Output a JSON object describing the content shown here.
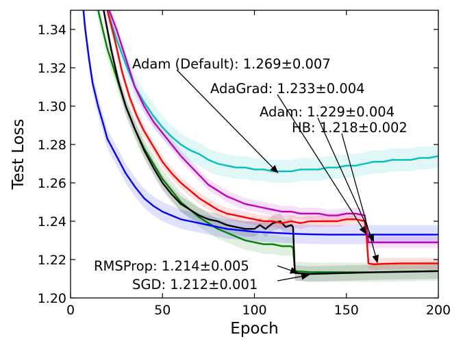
{
  "chart_data": {
    "type": "line",
    "xlabel": "Epoch",
    "ylabel": "Test Loss",
    "xlim": [
      0,
      200
    ],
    "ylim": [
      1.2,
      1.35
    ],
    "xticks": [
      0,
      50,
      100,
      150,
      200
    ],
    "yticks": [
      1.2,
      1.22,
      1.24,
      1.26,
      1.28,
      1.3,
      1.32,
      1.34
    ],
    "xtick_labels": [
      "0",
      "50",
      "100",
      "150",
      "200"
    ],
    "ytick_labels": [
      "1.20",
      "1.22",
      "1.24",
      "1.26",
      "1.28",
      "1.30",
      "1.32",
      "1.34"
    ],
    "grid": false,
    "legend": "none",
    "series": [
      {
        "key": "sgd",
        "color": "#007f00",
        "band": 0.005,
        "points": [
          [
            15,
            1.35
          ],
          [
            20,
            1.33
          ],
          [
            25,
            1.315
          ],
          [
            30,
            1.3
          ],
          [
            35,
            1.288
          ],
          [
            40,
            1.278
          ],
          [
            45,
            1.27
          ],
          [
            50,
            1.262
          ],
          [
            55,
            1.256
          ],
          [
            60,
            1.25
          ],
          [
            65,
            1.246
          ],
          [
            70,
            1.242
          ],
          [
            75,
            1.239
          ],
          [
            80,
            1.236
          ],
          [
            85,
            1.234
          ],
          [
            90,
            1.232
          ],
          [
            95,
            1.23
          ],
          [
            100,
            1.229
          ],
          [
            105,
            1.228
          ],
          [
            110,
            1.228
          ],
          [
            115,
            1.227
          ],
          [
            120,
            1.227
          ],
          [
            121,
            1.226
          ],
          [
            122,
            1.214
          ],
          [
            130,
            1.2135
          ],
          [
            150,
            1.2134
          ],
          [
            170,
            1.2134
          ],
          [
            200,
            1.214
          ]
        ]
      },
      {
        "key": "rmsprop",
        "color": "#000000",
        "band": 0.004,
        "points": [
          [
            18,
            1.35
          ],
          [
            22,
            1.33
          ],
          [
            26,
            1.313
          ],
          [
            30,
            1.3
          ],
          [
            35,
            1.288
          ],
          [
            40,
            1.277
          ],
          [
            45,
            1.268
          ],
          [
            50,
            1.26
          ],
          [
            55,
            1.254
          ],
          [
            60,
            1.249
          ],
          [
            65,
            1.246
          ],
          [
            70,
            1.243
          ],
          [
            75,
            1.241
          ],
          [
            80,
            1.24
          ],
          [
            85,
            1.238
          ],
          [
            90,
            1.237
          ],
          [
            95,
            1.236
          ],
          [
            100,
            1.236
          ],
          [
            103,
            1.238
          ],
          [
            106,
            1.236
          ],
          [
            110,
            1.239
          ],
          [
            114,
            1.24
          ],
          [
            117,
            1.237
          ],
          [
            120,
            1.238
          ],
          [
            121,
            1.237
          ],
          [
            122,
            1.213
          ],
          [
            130,
            1.2125
          ],
          [
            150,
            1.213
          ],
          [
            170,
            1.2135
          ],
          [
            200,
            1.214
          ]
        ]
      },
      {
        "key": "adam_default",
        "color": "#00bfbf",
        "band": 0.006,
        "points": [
          [
            20,
            1.35
          ],
          [
            25,
            1.335
          ],
          [
            30,
            1.322
          ],
          [
            35,
            1.31
          ],
          [
            40,
            1.302
          ],
          [
            45,
            1.295
          ],
          [
            50,
            1.289
          ],
          [
            55,
            1.284
          ],
          [
            60,
            1.28
          ],
          [
            65,
            1.277
          ],
          [
            70,
            1.275
          ],
          [
            75,
            1.272
          ],
          [
            80,
            1.27
          ],
          [
            85,
            1.269
          ],
          [
            90,
            1.268
          ],
          [
            95,
            1.268
          ],
          [
            100,
            1.267
          ],
          [
            105,
            1.267
          ],
          [
            110,
            1.266
          ],
          [
            115,
            1.266
          ],
          [
            120,
            1.266
          ],
          [
            125,
            1.267
          ],
          [
            130,
            1.267
          ],
          [
            135,
            1.267
          ],
          [
            140,
            1.268
          ],
          [
            145,
            1.268
          ],
          [
            150,
            1.269
          ],
          [
            155,
            1.269
          ],
          [
            160,
            1.27
          ],
          [
            165,
            1.271
          ],
          [
            170,
            1.271
          ],
          [
            175,
            1.272
          ],
          [
            180,
            1.272
          ],
          [
            185,
            1.272
          ],
          [
            190,
            1.273
          ],
          [
            195,
            1.273
          ],
          [
            200,
            1.274
          ]
        ]
      },
      {
        "key": "adagrad",
        "color": "#0000ff",
        "band": 0.005,
        "points": [
          [
            7,
            1.35
          ],
          [
            8,
            1.34
          ],
          [
            10,
            1.325
          ],
          [
            12,
            1.312
          ],
          [
            15,
            1.3
          ],
          [
            18,
            1.29
          ],
          [
            20,
            1.283
          ],
          [
            25,
            1.274
          ],
          [
            30,
            1.265
          ],
          [
            35,
            1.258
          ],
          [
            40,
            1.252
          ],
          [
            45,
            1.248
          ],
          [
            50,
            1.245
          ],
          [
            55,
            1.243
          ],
          [
            60,
            1.241
          ],
          [
            65,
            1.24
          ],
          [
            70,
            1.239
          ],
          [
            75,
            1.238
          ],
          [
            80,
            1.237
          ],
          [
            85,
            1.236
          ],
          [
            90,
            1.2355
          ],
          [
            95,
            1.235
          ],
          [
            100,
            1.2345
          ],
          [
            110,
            1.234
          ],
          [
            120,
            1.2335
          ],
          [
            130,
            1.2332
          ],
          [
            140,
            1.233
          ],
          [
            150,
            1.233
          ],
          [
            160,
            1.233
          ],
          [
            170,
            1.233
          ],
          [
            180,
            1.233
          ],
          [
            190,
            1.233
          ],
          [
            200,
            1.233
          ]
        ]
      },
      {
        "key": "adam",
        "color": "#bf00bf",
        "band": 0.003,
        "points": [
          [
            21,
            1.35
          ],
          [
            25,
            1.34
          ],
          [
            30,
            1.325
          ],
          [
            35,
            1.31
          ],
          [
            40,
            1.3
          ],
          [
            45,
            1.292
          ],
          [
            50,
            1.286
          ],
          [
            55,
            1.28
          ],
          [
            60,
            1.274
          ],
          [
            65,
            1.269
          ],
          [
            70,
            1.264
          ],
          [
            75,
            1.259
          ],
          [
            80,
            1.256
          ],
          [
            85,
            1.253
          ],
          [
            90,
            1.251
          ],
          [
            95,
            1.249
          ],
          [
            100,
            1.248
          ],
          [
            105,
            1.247
          ],
          [
            110,
            1.246
          ],
          [
            115,
            1.245
          ],
          [
            120,
            1.245
          ],
          [
            125,
            1.244
          ],
          [
            130,
            1.244
          ],
          [
            135,
            1.244
          ],
          [
            140,
            1.243
          ],
          [
            145,
            1.243
          ],
          [
            150,
            1.244
          ],
          [
            155,
            1.244
          ],
          [
            160,
            1.243
          ],
          [
            161,
            1.236
          ],
          [
            162,
            1.229
          ],
          [
            170,
            1.229
          ],
          [
            180,
            1.229
          ],
          [
            190,
            1.229
          ],
          [
            200,
            1.229
          ]
        ]
      },
      {
        "key": "hb",
        "color": "#ff0000",
        "band": 0.003,
        "points": [
          [
            20,
            1.35
          ],
          [
            24,
            1.335
          ],
          [
            28,
            1.318
          ],
          [
            32,
            1.305
          ],
          [
            36,
            1.295
          ],
          [
            40,
            1.287
          ],
          [
            45,
            1.279
          ],
          [
            50,
            1.271
          ],
          [
            55,
            1.265
          ],
          [
            60,
            1.26
          ],
          [
            65,
            1.256
          ],
          [
            70,
            1.252
          ],
          [
            75,
            1.249
          ],
          [
            80,
            1.246
          ],
          [
            85,
            1.244
          ],
          [
            90,
            1.243
          ],
          [
            95,
            1.242
          ],
          [
            100,
            1.241
          ],
          [
            105,
            1.24
          ],
          [
            110,
            1.24
          ],
          [
            115,
            1.239
          ],
          [
            120,
            1.24
          ],
          [
            125,
            1.239
          ],
          [
            130,
            1.24
          ],
          [
            135,
            1.24
          ],
          [
            140,
            1.24
          ],
          [
            145,
            1.24
          ],
          [
            150,
            1.241
          ],
          [
            155,
            1.241
          ],
          [
            160,
            1.24
          ],
          [
            161,
            1.232
          ],
          [
            162,
            1.218
          ],
          [
            165,
            1.2175
          ],
          [
            170,
            1.2178
          ],
          [
            180,
            1.218
          ],
          [
            190,
            1.218
          ],
          [
            200,
            1.218
          ]
        ]
      }
    ],
    "annotations": [
      {
        "key": "adam_default",
        "text": "Adam (Default): 1.269±0.007",
        "target": [
          113,
          1.265
        ]
      },
      {
        "key": "adagrad",
        "text": "AdaGrad: 1.233±0.004",
        "target": [
          161,
          1.233
        ]
      },
      {
        "key": "adam",
        "text": "Adam: 1.229±0.004",
        "target": [
          165,
          1.229
        ]
      },
      {
        "key": "hb",
        "text": "HB: 1.218±0.002",
        "target": [
          167,
          1.218
        ]
      },
      {
        "key": "rmsprop",
        "text": "RMSProp: 1.214±0.005",
        "target": [
          124,
          1.213
        ]
      },
      {
        "key": "sgd",
        "text": "SGD: 1.212±0.001",
        "target": [
          130,
          1.212
        ]
      }
    ]
  }
}
